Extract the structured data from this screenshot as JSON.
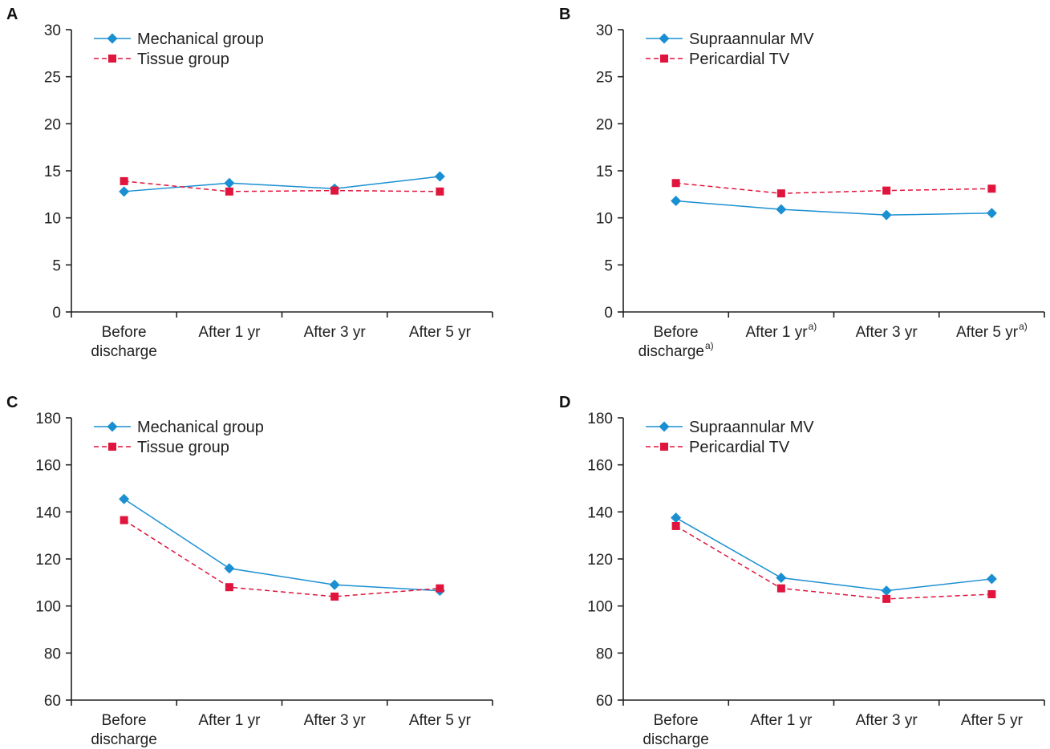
{
  "colors": {
    "series1": "#1a8fd1",
    "series2": "#e0143c",
    "axis": "#222222"
  },
  "chart_data": [
    {
      "panel": "A",
      "type": "line",
      "categories": [
        [
          "Before",
          "discharge"
        ],
        [
          "After 1 yr"
        ],
        [
          "After 3 yr"
        ],
        [
          "After 5 yr"
        ]
      ],
      "category_notes": [
        "",
        "",
        "",
        ""
      ],
      "ylim": [
        0,
        30
      ],
      "yticks": [
        0,
        5,
        10,
        15,
        20,
        25,
        30
      ],
      "series": [
        {
          "name": "Mechanical group",
          "marker": "diamond",
          "dash": false,
          "values": [
            12.8,
            13.7,
            13.1,
            14.4
          ]
        },
        {
          "name": "Tissue group",
          "marker": "square",
          "dash": true,
          "values": [
            13.9,
            12.8,
            12.9,
            12.8
          ]
        }
      ]
    },
    {
      "panel": "B",
      "type": "line",
      "categories": [
        [
          "Before",
          "discharge"
        ],
        [
          "After 1 yr"
        ],
        [
          "After 3 yr"
        ],
        [
          "After 5 yr"
        ]
      ],
      "category_notes": [
        "a)",
        "a)",
        "",
        "a)"
      ],
      "ylim": [
        0,
        30
      ],
      "yticks": [
        0,
        5,
        10,
        15,
        20,
        25,
        30
      ],
      "series": [
        {
          "name": "Supraannular MV",
          "marker": "diamond",
          "dash": false,
          "values": [
            11.8,
            10.9,
            10.3,
            10.5
          ]
        },
        {
          "name": "Pericardial TV",
          "marker": "square",
          "dash": true,
          "values": [
            13.7,
            12.6,
            12.9,
            13.1
          ]
        }
      ]
    },
    {
      "panel": "C",
      "type": "line",
      "categories": [
        [
          "Before",
          "discharge"
        ],
        [
          "After 1 yr"
        ],
        [
          "After 3 yr"
        ],
        [
          "After 5 yr"
        ]
      ],
      "category_notes": [
        "",
        "",
        "",
        ""
      ],
      "ylim": [
        60,
        180
      ],
      "yticks": [
        60,
        80,
        100,
        120,
        140,
        160,
        180
      ],
      "series": [
        {
          "name": "Mechanical group",
          "marker": "diamond",
          "dash": false,
          "values": [
            145.5,
            116,
            109,
            106.5
          ]
        },
        {
          "name": "Tissue group",
          "marker": "square",
          "dash": true,
          "values": [
            136.5,
            108,
            104,
            107.5
          ]
        }
      ]
    },
    {
      "panel": "D",
      "type": "line",
      "categories": [
        [
          "Before",
          "discharge"
        ],
        [
          "After 1 yr"
        ],
        [
          "After 3 yr"
        ],
        [
          "After 5 yr"
        ]
      ],
      "category_notes": [
        "",
        "",
        "",
        ""
      ],
      "ylim": [
        60,
        180
      ],
      "yticks": [
        60,
        80,
        100,
        120,
        140,
        160,
        180
      ],
      "series": [
        {
          "name": "Supraannular MV",
          "marker": "diamond",
          "dash": false,
          "values": [
            137.5,
            112,
            106.5,
            111.5
          ]
        },
        {
          "name": "Pericardial TV",
          "marker": "square",
          "dash": true,
          "values": [
            134,
            107.5,
            103,
            105
          ]
        }
      ]
    }
  ]
}
